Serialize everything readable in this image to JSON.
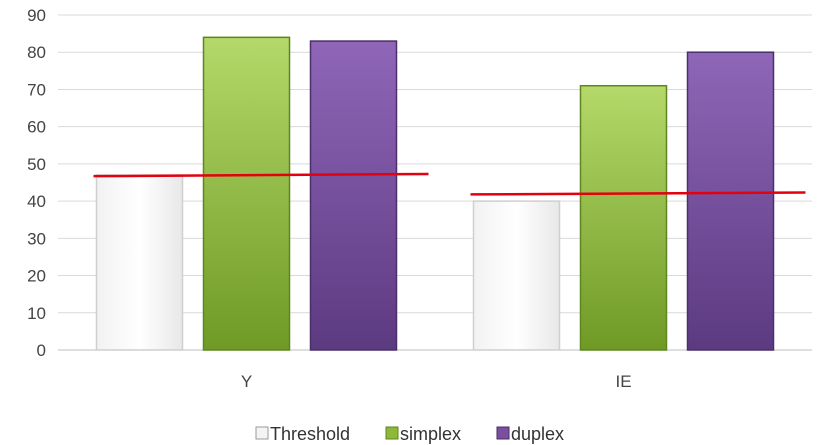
{
  "chart_data": {
    "type": "bar",
    "categories": [
      "Y",
      "IE"
    ],
    "series": [
      {
        "name": "Threshold",
        "values": [
          47,
          40
        ],
        "color": "#ffffff"
      },
      {
        "name": "simplex",
        "values": [
          84,
          71
        ],
        "color": "#8db83a"
      },
      {
        "name": "duplex",
        "values": [
          83,
          80
        ],
        "color": "#7a4fa0"
      }
    ],
    "threshold_line": {
      "color": "#e3000f",
      "values": [
        [
          46.7,
          47.3
        ],
        [
          41.8,
          42.3
        ]
      ]
    },
    "ylim": [
      0,
      90
    ],
    "yticks": [
      0,
      10,
      20,
      30,
      40,
      50,
      60,
      70,
      80,
      90
    ],
    "grid": true,
    "legend": "bottom",
    "title": "",
    "xlabel": "",
    "ylabel": ""
  }
}
